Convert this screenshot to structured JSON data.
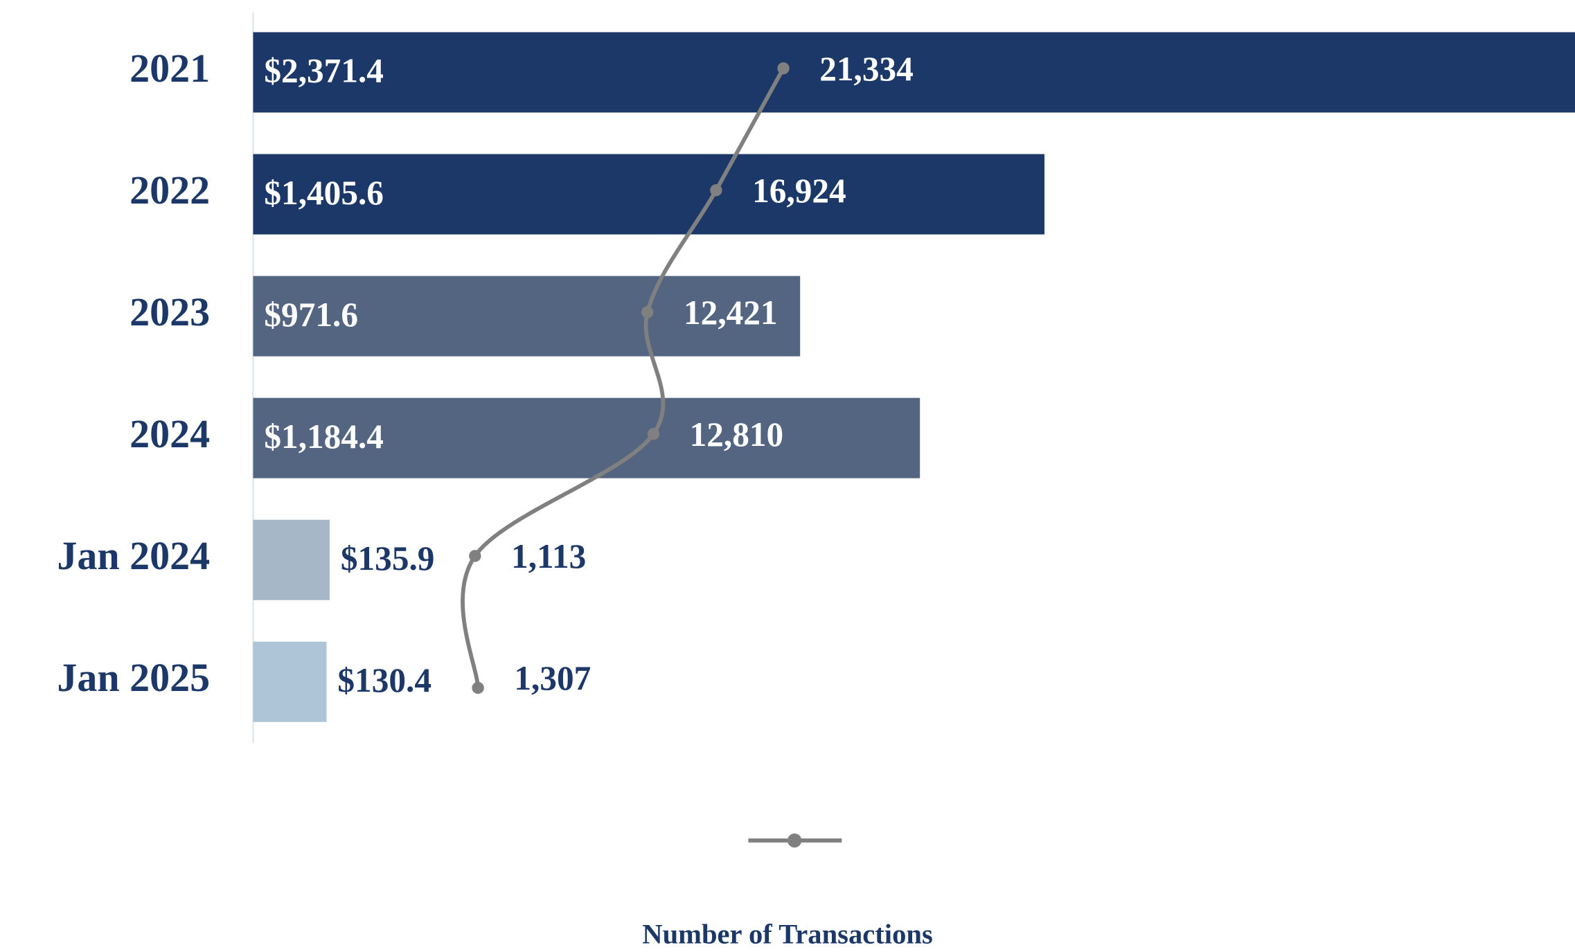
{
  "chart_data": {
    "type": "bar",
    "orientation": "horizontal",
    "categories": [
      "2021",
      "2022",
      "2023",
      "2024",
      "Jan 2024",
      "Jan 2025"
    ],
    "series": [
      {
        "colors": [
          "#1c3868",
          "#1c3868",
          "#536580",
          "#536580",
          "#a6b7c7",
          "#adc5d7"
        ],
        "values": [
          2371.4,
          1405.6,
          971.6,
          1184.4,
          135.9,
          130.4
        ],
        "value_labels": [
          "$2,371.4",
          "$1,405.6",
          "$971.6",
          "$1,184.4",
          "$135.9",
          "$130.4"
        ]
      },
      {
        "name": "Number of Transactions",
        "type": "line",
        "axis": "x2",
        "color": "#808080",
        "values": [
          21334,
          16924,
          12421,
          12810,
          1113,
          1307
        ],
        "value_labels": [
          "21,334",
          "16,924",
          "12,421",
          "12,810",
          "1,113",
          "1,307"
        ]
      }
    ],
    "xlim": [
      0,
      2348
    ],
    "x2lim": [
      -13440,
      73250
    ],
    "legend": "bottom"
  }
}
